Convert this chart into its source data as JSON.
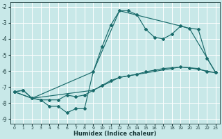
{
  "xlabel": "Humidex (Indice chaleur)",
  "bg_color": "#c8e8e8",
  "grid_color": "#ffffff",
  "line_color": "#1a6b6b",
  "xlim": [
    -0.5,
    23.5
  ],
  "ylim": [
    -9.3,
    -1.7
  ],
  "yticks": [
    -9,
    -8,
    -7,
    -6,
    -5,
    -4,
    -3,
    -2
  ],
  "xticks": [
    0,
    1,
    2,
    3,
    4,
    5,
    6,
    7,
    8,
    9,
    10,
    11,
    12,
    13,
    14,
    15,
    16,
    17,
    18,
    19,
    20,
    21,
    22,
    23
  ],
  "curve1_x": [
    0,
    1,
    2,
    3,
    4,
    5,
    6,
    7,
    8,
    9,
    10,
    11,
    12,
    13,
    14,
    15,
    16,
    17,
    18,
    19,
    20,
    21,
    22,
    23
  ],
  "curve1_y": [
    -7.3,
    -7.2,
    -7.7,
    -7.8,
    -8.2,
    -8.2,
    -8.6,
    -8.35,
    -8.35,
    -6.05,
    -4.5,
    -3.15,
    -2.25,
    -2.25,
    -2.5,
    -3.4,
    -3.9,
    -4.0,
    -3.7,
    -3.2,
    -3.35,
    -3.4,
    -5.2,
    -6.1
  ],
  "curve2_x": [
    0,
    1,
    2,
    3,
    4,
    5,
    6,
    7,
    8,
    9,
    10,
    11,
    12,
    13,
    14,
    15,
    16,
    17,
    18,
    19,
    20,
    21,
    22,
    23
  ],
  "curve2_y": [
    -7.3,
    -7.2,
    -7.7,
    -7.8,
    -7.8,
    -7.8,
    -7.5,
    -7.6,
    -7.5,
    -7.2,
    -6.9,
    -6.6,
    -6.4,
    -6.3,
    -6.2,
    -6.05,
    -5.95,
    -5.85,
    -5.8,
    -5.75,
    -5.8,
    -5.85,
    -6.05,
    -6.1
  ],
  "curve3_x": [
    0,
    2,
    9,
    12,
    19,
    20,
    23
  ],
  "curve3_y": [
    -7.3,
    -7.7,
    -6.05,
    -2.25,
    -3.2,
    -3.35,
    -6.1
  ],
  "curve4_x": [
    0,
    2,
    9,
    12,
    19,
    20,
    23
  ],
  "curve4_y": [
    -7.3,
    -7.7,
    -7.2,
    -6.4,
    -5.75,
    -5.8,
    -6.1
  ]
}
